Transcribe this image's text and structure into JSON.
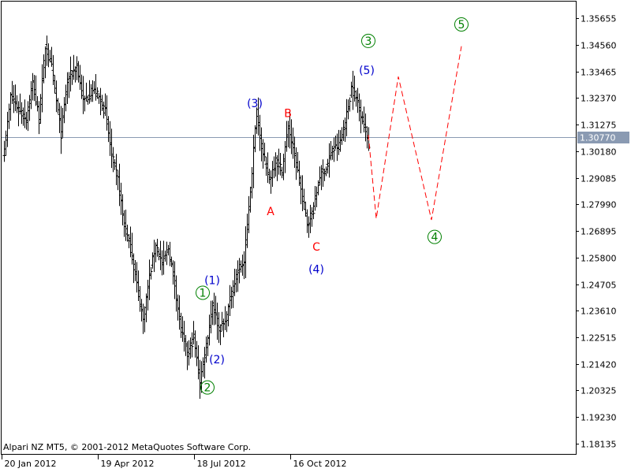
{
  "chart_data": {
    "type": "bar",
    "subtype": "ohlc",
    "watermark": "Alpari NZ MT5, © 2001-2012 MetaQuotes Software Corp.",
    "ylim": [
      1.1768,
      1.3634
    ],
    "y_ticks": [
      "1.35655",
      "1.34560",
      "1.33465",
      "1.32370",
      "1.31275",
      "1.30180",
      "1.29085",
      "1.27990",
      "1.26895",
      "1.25800",
      "1.24705",
      "1.23610",
      "1.22515",
      "1.21420",
      "1.20325",
      "1.19230",
      "1.18135"
    ],
    "x_ticks": [
      "20 Jan 2012",
      "19 Apr 2012",
      "18 Jul 2012",
      "16 Oct 2012"
    ],
    "x_tick_index": [
      0,
      61,
      122,
      183
    ],
    "x_range": [
      0,
      363
    ],
    "current_price": {
      "value": 1.3077,
      "label": "1.30770",
      "line_color": "#8a9ab2"
    },
    "bar_color": "#000000",
    "anchors": [
      [
        0,
        1.302
      ],
      [
        4,
        1.324
      ],
      [
        10,
        1.318
      ],
      [
        14,
        1.315
      ],
      [
        18,
        1.33
      ],
      [
        22,
        1.315
      ],
      [
        26,
        1.345
      ],
      [
        30,
        1.336
      ],
      [
        36,
        1.309
      ],
      [
        40,
        1.331
      ],
      [
        46,
        1.337
      ],
      [
        50,
        1.322
      ],
      [
        56,
        1.327
      ],
      [
        60,
        1.324
      ],
      [
        64,
        1.318
      ],
      [
        68,
        1.3
      ],
      [
        72,
        1.29
      ],
      [
        76,
        1.271
      ],
      [
        80,
        1.262
      ],
      [
        84,
        1.247
      ],
      [
        88,
        1.232
      ],
      [
        92,
        1.25
      ],
      [
        96,
        1.264
      ],
      [
        100,
        1.255
      ],
      [
        104,
        1.262
      ],
      [
        108,
        1.247
      ],
      [
        112,
        1.228
      ],
      [
        116,
        1.218
      ],
      [
        120,
        1.225
      ],
      [
        124,
        1.207
      ],
      [
        128,
        1.222
      ],
      [
        132,
        1.239
      ],
      [
        136,
        1.229
      ],
      [
        140,
        1.231
      ],
      [
        144,
        1.243
      ],
      [
        148,
        1.253
      ],
      [
        152,
        1.256
      ],
      [
        156,
        1.286
      ],
      [
        160,
        1.318
      ],
      [
        164,
        1.3
      ],
      [
        168,
        1.29
      ],
      [
        172,
        1.298
      ],
      [
        176,
        1.294
      ],
      [
        180,
        1.312
      ],
      [
        184,
        1.3
      ],
      [
        188,
        1.286
      ],
      [
        192,
        1.272
      ],
      [
        196,
        1.278
      ],
      [
        200,
        1.292
      ],
      [
        204,
        1.295
      ],
      [
        208,
        1.302
      ],
      [
        212,
        1.304
      ],
      [
        216,
        1.313
      ],
      [
        220,
        1.328
      ],
      [
        224,
        1.322
      ],
      [
        228,
        1.313
      ],
      [
        231,
        1.305
      ]
    ],
    "forecast": {
      "color": "#ff0000",
      "points": [
        [
          231,
          1.3085
        ],
        [
          236,
          1.274
        ],
        [
          250,
          1.3325
        ],
        [
          271,
          1.2735
        ],
        [
          290,
          1.345
        ]
      ]
    },
    "annotations": [
      {
        "text": "(1)",
        "x": 132,
        "y": 1.2487,
        "color": "#0000cc",
        "circled": false
      },
      {
        "text": "1",
        "x": 126,
        "y": 1.2435,
        "color": "#008000",
        "circled": true
      },
      {
        "text": "(2)",
        "x": 135,
        "y": 1.216,
        "color": "#0000cc",
        "circled": false
      },
      {
        "text": "2",
        "x": 129,
        "y": 1.2045,
        "color": "#008000",
        "circled": true
      },
      {
        "text": "(3)",
        "x": 159,
        "y": 1.3215,
        "color": "#0000cc",
        "circled": false
      },
      {
        "text": "A",
        "x": 169,
        "y": 1.277,
        "color": "#ff0000",
        "circled": false
      },
      {
        "text": "B",
        "x": 180,
        "y": 1.3175,
        "color": "#ff0000",
        "circled": false
      },
      {
        "text": "C",
        "x": 198,
        "y": 1.2625,
        "color": "#ff0000",
        "circled": false
      },
      {
        "text": "(4)",
        "x": 198,
        "y": 1.2533,
        "color": "#0000cc",
        "circled": false
      },
      {
        "text": "(5)",
        "x": 230,
        "y": 1.3352,
        "color": "#0000cc",
        "circled": false
      },
      {
        "text": "3",
        "x": 231,
        "y": 1.3472,
        "color": "#008000",
        "circled": true
      },
      {
        "text": "4",
        "x": 273,
        "y": 1.2665,
        "color": "#008000",
        "circled": true
      },
      {
        "text": "5",
        "x": 290,
        "y": 1.354,
        "color": "#008000",
        "circled": true
      }
    ]
  }
}
